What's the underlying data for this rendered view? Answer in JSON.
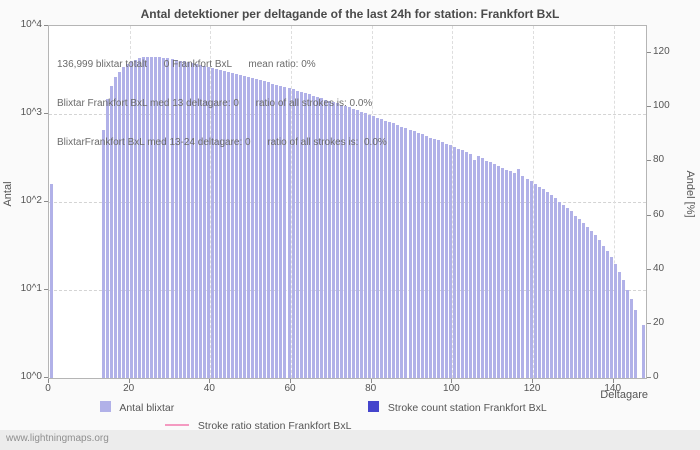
{
  "chart_data": {
    "type": "bar",
    "title": "Antal detektioner per deltagande of the last 24h for station: Frankfort BxL",
    "xlabel": "Deltagare",
    "ylabel_left": "Antal",
    "ylabel_right": "Andel [%]",
    "y_scale": "log10",
    "ylim": [
      1,
      10000
    ],
    "left_ticks": [
      "10^4",
      "10^3",
      "10^2",
      "10^1",
      "10^0"
    ],
    "left_tick_exponents": [
      4,
      3,
      2,
      1,
      0
    ],
    "right_axis": {
      "ylim": [
        0,
        130
      ],
      "ticks": [
        0,
        20,
        40,
        60,
        80,
        100,
        120
      ]
    },
    "x_ticks": [
      0,
      20,
      40,
      60,
      80,
      100,
      120,
      140
    ],
    "xmax": 148,
    "bar_color": "#b1b1e8",
    "grid": true,
    "legend_position": "bottom",
    "values": [
      160,
      0,
      0,
      0,
      0,
      0,
      0,
      0,
      0,
      0,
      0,
      0,
      0,
      650,
      1500,
      2100,
      2600,
      3000,
      3400,
      3700,
      3950,
      4150,
      4300,
      4400,
      4450,
      4500,
      4470,
      4420,
      4350,
      4280,
      4200,
      4120,
      4040,
      3960,
      3880,
      3800,
      3700,
      3620,
      3530,
      3450,
      3370,
      3280,
      3200,
      3120,
      3040,
      2960,
      2880,
      2800,
      2730,
      2650,
      2580,
      2500,
      2430,
      2360,
      2290,
      2220,
      2150,
      2090,
      2020,
      1960,
      1900,
      1840,
      1780,
      1720,
      1670,
      1610,
      1560,
      1510,
      1460,
      1410,
      1360,
      1320,
      1270,
      1230,
      1190,
      1140,
      1100,
      1060,
      1020,
      980,
      950,
      910,
      880,
      840,
      810,
      780,
      750,
      720,
      690,
      660,
      640,
      610,
      590,
      560,
      540,
      520,
      500,
      480,
      460,
      440,
      420,
      405,
      385,
      370,
      350,
      300,
      330,
      315,
      295,
      285,
      270,
      258,
      246,
      234,
      224,
      214,
      240,
      195,
      183,
      172,
      160,
      150,
      140,
      130,
      120,
      110,
      100,
      92,
      85,
      78,
      70,
      64,
      58,
      52,
      47,
      42,
      37,
      32,
      28,
      24,
      20,
      16,
      13,
      10,
      8,
      6,
      0,
      4,
      0,
      0
    ]
  },
  "annotations": [
    "136,999 blixtar totalt      0 Frankfort BxL      mean ratio: 0%",
    "Blixtar Frankfort BxL med 13 deltagare: 0      ratio of all strokes is: 0.0%",
    "BlixtarFrankfort BxL med 13-24 deltagare: 0      ratio of all strokes is:  0.0%"
  ],
  "legend": {
    "items": [
      {
        "label": "Antal blixtar",
        "color": "#b1b1e8",
        "type": "square"
      },
      {
        "label": "Stroke count station Frankfort BxL",
        "color": "#4545cc",
        "type": "square"
      },
      {
        "label": "Stroke ratio station Frankfort BxL",
        "color": "#f49ac1",
        "type": "line"
      }
    ]
  },
  "footer": {
    "watermark": "www.lightningmaps.org"
  },
  "colors": {
    "background": "#fafafa",
    "plot_background": "#ffffff",
    "grid": "#d4d4d4",
    "axis_border": "#b5b5b5",
    "text": "#555555"
  }
}
